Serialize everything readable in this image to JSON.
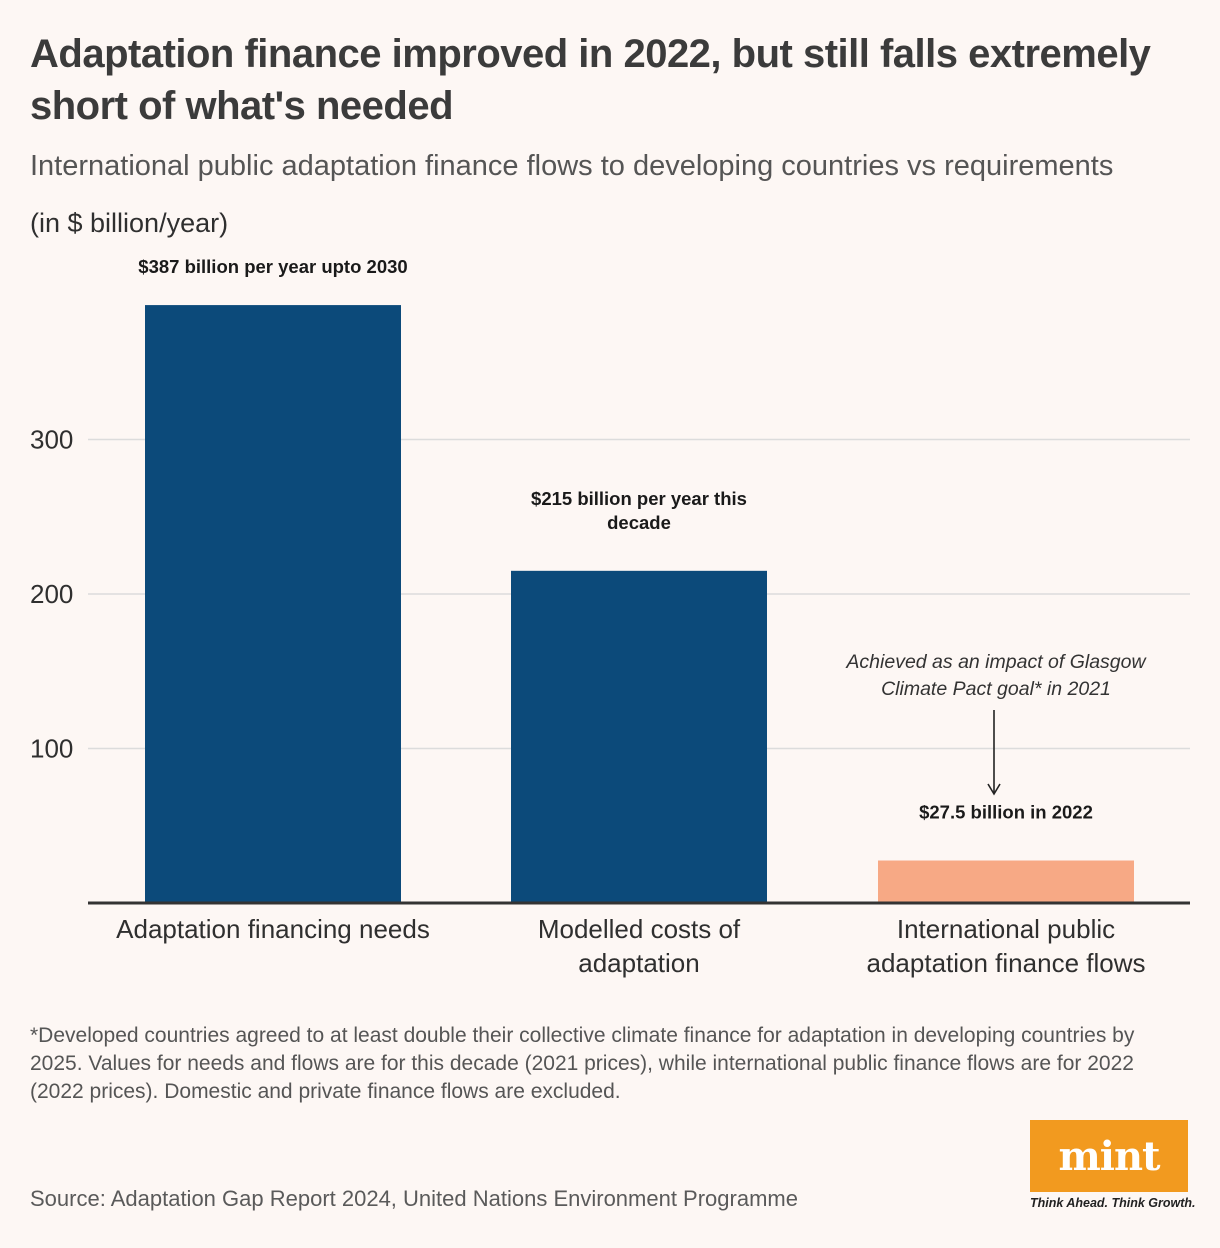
{
  "header": {
    "title": "Adaptation finance improved in 2022, but still falls extremely short of what's needed",
    "subtitle": "International public adaptation finance flows to developing countries vs requirements",
    "units": "(in $ billion/year)"
  },
  "chart_data": {
    "type": "bar",
    "categories": [
      [
        "Adaptation financing needs"
      ],
      [
        "Modelled costs of",
        "adaptation"
      ],
      [
        "International public",
        "adaptation finance flows"
      ]
    ],
    "values": [
      387,
      215,
      27.5
    ],
    "data_labels": [
      [
        "$387 billion per year upto 2030"
      ],
      [
        "$215 billion per year this",
        "decade"
      ],
      [
        "$27.5 billion in 2022"
      ]
    ],
    "colors": [
      "#0c4a7a",
      "#0c4a7a",
      "#f7a985"
    ],
    "y_ticks": [
      100,
      200,
      300
    ],
    "ylim": [
      0,
      400
    ],
    "grid": true,
    "annotation": {
      "lines": [
        "Achieved as an impact of Glasgow",
        "Climate Pact goal* in 2021"
      ],
      "target_index": 2
    }
  },
  "footnote": "*Developed countries agreed to at least double their collective climate finance for adaptation in developing countries by 2025. Values for needs and flows are for this decade (2021 prices), while international public finance flows are for 2022 (2022 prices). Domestic and private finance flows are excluded.",
  "source": "Source: Adaptation Gap Report 2024, United Nations Environment Programme",
  "branding": {
    "logo_text": "mint",
    "tagline": "Think Ahead. Think Growth.",
    "logo_color": "#f29a1f"
  }
}
